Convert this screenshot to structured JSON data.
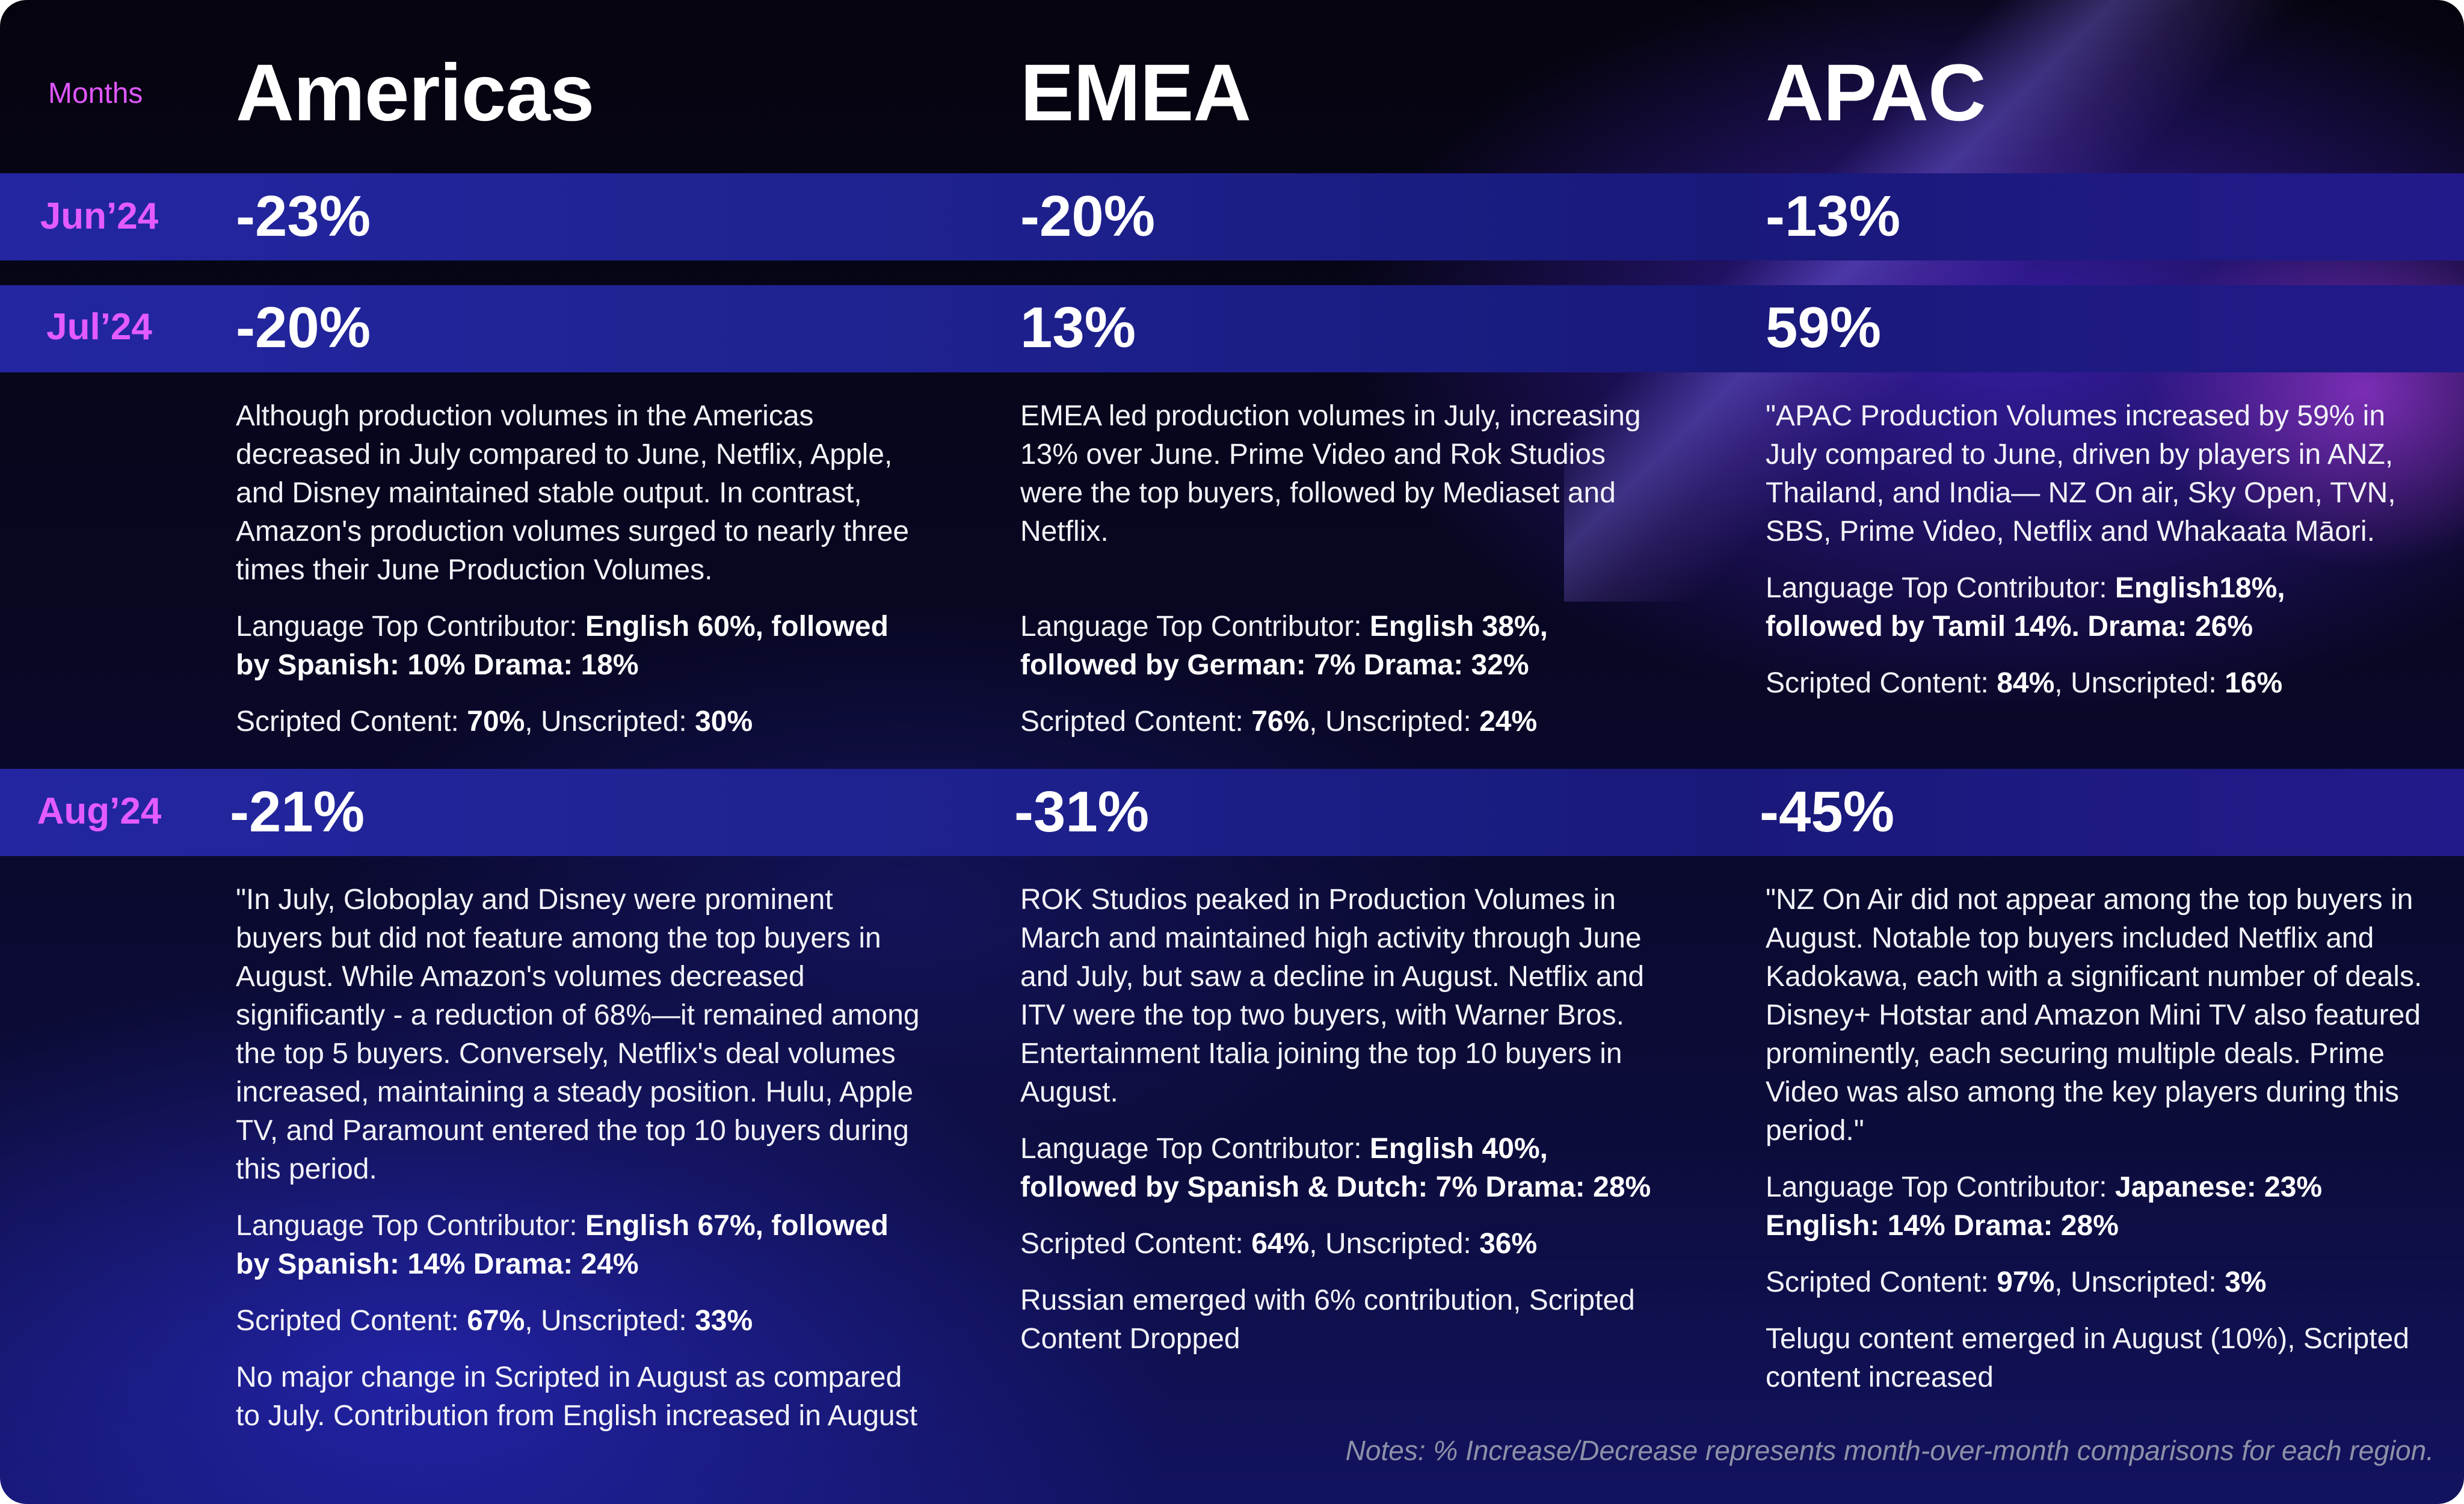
{
  "header": {
    "months_label": "Months",
    "regions": [
      "Americas",
      "EMEA",
      "APAC"
    ]
  },
  "months": [
    "Jun’24",
    "Jul’24",
    "Aug’24"
  ],
  "changes": {
    "jun": [
      "-23%",
      "-20%",
      "-13%"
    ],
    "jul": [
      "-20%",
      "13%",
      "59%"
    ],
    "aug": [
      "-21%",
      "-31%",
      "-45%"
    ]
  },
  "jul": {
    "americas": {
      "summary": "Although production volumes in the Americas decreased in July compared to June, Netflix, Apple, and Disney maintained stable output. In contrast, Amazon's production volumes surged to nearly three times their June Production Volumes.",
      "lang_prefix": "Language Top Contributor: ",
      "lang_value": "English 60%, followed by Spanish: 10% Drama: 18%",
      "scripted_prefix": "Scripted Content: ",
      "scripted_value": "70%",
      "unscripted_prefix": ", Unscripted: ",
      "unscripted_value": "30%"
    },
    "emea": {
      "summary": "EMEA led production volumes in July, increasing 13% over June. Prime Video and Rok Studios were the top buyers, followed by Mediaset and Netflix.",
      "lang_prefix": "Language Top Contributor: ",
      "lang_value": "English 38%, followed by German: 7% Drama: 32%",
      "scripted_prefix": "Scripted Content: ",
      "scripted_value": "76%",
      "unscripted_prefix": ", Unscripted: ",
      "unscripted_value": "24%"
    },
    "apac": {
      "summary": "\"APAC Production Volumes increased by 59% in July compared to June, driven by players in ANZ, Thailand, and India— NZ On air, Sky Open, TVN, SBS, Prime Video, Netflix and Whakaata Māori.",
      "lang_prefix": "Language Top Contributor: ",
      "lang_value": "English18%, followed by Tamil 14%. Drama: 26%",
      "scripted_prefix": "Scripted Content: ",
      "scripted_value": "84%",
      "unscripted_prefix": ", Unscripted: ",
      "unscripted_value": "16%"
    }
  },
  "aug": {
    "americas": {
      "summary": "\"In July, Globoplay and Disney were prominent buyers but did not feature among the top buyers in August. While Amazon's volumes decreased significantly - a reduction of 68%—it remained among the top 5 buyers. Conversely, Netflix's deal volumes increased, maintaining a steady position. Hulu, Apple TV, and Paramount entered the top 10 buyers during this period.",
      "lang_prefix": "Language Top Contributor: ",
      "lang_value": "English 67%, followed by Spanish: 14% Drama: 24%",
      "scripted_prefix": "Scripted Content: ",
      "scripted_value": "67%",
      "unscripted_prefix": ", Unscripted: ",
      "unscripted_value": "33%",
      "extra": "No major change in Scripted in August as compared to July. Contribution from English increased in August"
    },
    "emea": {
      "summary": "ROK Studios peaked in Production Volumes in March and maintained high activity through June and July, but saw a decline in August. Netflix and ITV were the top two buyers, with Warner Bros. Entertainment Italia joining the top 10 buyers in August.",
      "lang_prefix": "Language Top Contributor: ",
      "lang_value": "English 40%, followed by Spanish & Dutch: 7% Drama: 28%",
      "scripted_prefix": "Scripted Content: ",
      "scripted_value": "64%",
      "unscripted_prefix": ", Unscripted: ",
      "unscripted_value": "36%",
      "extra": "Russian emerged with 6% contribution, Scripted Content Dropped"
    },
    "apac": {
      "summary": "\"NZ On Air did not appear among the top buyers in August. Notable top buyers included Netflix and Kadokawa, each with a significant number of deals. Disney+ Hotstar and Amazon Mini TV also featured prominently, each securing multiple deals. Prime Video was also among the key players during this period.\"",
      "lang_prefix": "Language Top Contributor: ",
      "lang_value": "Japanese: 23% English: 14% Drama: 28%",
      "scripted_prefix": "Scripted Content: ",
      "scripted_value": "97%",
      "unscripted_prefix": ", Unscripted: ",
      "unscripted_value": "3%",
      "extra": "Telugu content emerged in August (10%), Scripted content increased"
    }
  },
  "footer": {
    "note": "Notes: % Increase/Decrease represents month-over-month comparisons for each region."
  },
  "colors": {
    "accent_magenta": "#e35bff",
    "band_blue": "#1e2290",
    "background_dark": "#05040e"
  }
}
